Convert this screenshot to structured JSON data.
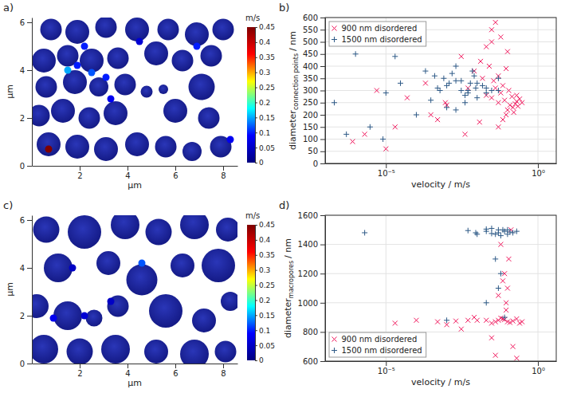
{
  "chart_data": [
    {
      "type": "circle_map",
      "panel_label": "a)",
      "xlabel": "µm",
      "ylabel": "µm",
      "xlim": [
        0,
        8.6
      ],
      "ylim": [
        0,
        6.2
      ],
      "xticks": [
        2,
        4,
        6,
        8
      ],
      "yticks": [
        0,
        2,
        4,
        6
      ],
      "circles": {
        "x": [
          0.8,
          1.9,
          3.1,
          4.4,
          5.7,
          6.9,
          8.0,
          0.5,
          1.5,
          2.5,
          3.6,
          5.2,
          6.3,
          7.5,
          0.6,
          1.8,
          2.8,
          3.9,
          4.8,
          5.5,
          7.1,
          0.3,
          1.3,
          2.4,
          3.5,
          6.0,
          7.4,
          0.7,
          1.9,
          3.1,
          4.4,
          5.6,
          6.7,
          7.9
        ],
        "y": [
          5.7,
          5.6,
          5.8,
          5.7,
          5.7,
          5.5,
          5.7,
          4.4,
          4.6,
          4.4,
          4.5,
          4.7,
          4.4,
          4.6,
          3.3,
          3.5,
          3.3,
          3.4,
          3.1,
          3.2,
          3.3,
          2.1,
          2.3,
          2.0,
          2.2,
          2.3,
          2.0,
          0.9,
          0.8,
          0.7,
          0.9,
          0.8,
          0.6,
          0.8
        ],
        "r": [
          0.45,
          0.5,
          0.45,
          0.5,
          0.45,
          0.5,
          0.45,
          0.5,
          0.45,
          0.5,
          0.45,
          0.5,
          0.45,
          0.45,
          0.45,
          0.5,
          0.4,
          0.45,
          0.25,
          0.2,
          0.55,
          0.45,
          0.5,
          0.45,
          0.5,
          0.5,
          0.45,
          0.5,
          0.5,
          0.5,
          0.5,
          0.45,
          0.4,
          0.45
        ]
      },
      "hotspots": {
        "x": [
          0.7,
          1.5,
          2.2,
          2.5,
          3.1,
          3.3,
          1.9,
          6.9,
          4.5,
          8.3
        ],
        "y": [
          0.7,
          4.0,
          5.0,
          3.9,
          3.7,
          2.8,
          4.2,
          5.0,
          5.2,
          1.1
        ],
        "velocity": [
          0.45,
          0.15,
          0.1,
          0.12,
          0.1,
          0.08,
          0.1,
          0.1,
          0.06,
          0.08
        ]
      },
      "colorbar": {
        "label": "m/s",
        "range": [
          0,
          0.45
        ],
        "ticks": [
          0,
          0.05,
          0.1,
          0.15,
          0.2,
          0.25,
          0.3,
          0.35,
          0.4,
          0.45
        ]
      }
    },
    {
      "type": "scatter",
      "panel_label": "b)",
      "xlabel": "velocity / m/s",
      "ylabel": {
        "text": "diameter",
        "subscript": "connection points",
        "unit": "/ nm"
      },
      "log": "x",
      "grid": true,
      "legend": "upper left",
      "xlim": [
        1e-07,
        4
      ],
      "ylim": [
        0,
        600
      ],
      "xticks": [
        {
          "value": 1e-05,
          "label": "10⁻⁵"
        },
        {
          "value": 1,
          "label": "10⁰"
        }
      ],
      "yticks": [
        0,
        50,
        100,
        150,
        200,
        250,
        300,
        350,
        400,
        450,
        500,
        550,
        600
      ],
      "series": [
        {
          "name": "900 nm disordered",
          "color": "#f0145a",
          "marker": "x",
          "x": [
            0.05,
            0.08,
            0.12,
            0.03,
            0.2,
            0.15,
            0.06,
            0.1,
            0.25,
            0.04,
            0.02,
            0.09,
            0.18,
            0.3,
            0.07,
            0.11,
            0.05,
            0.14,
            0.035,
            0.22,
            0.013,
            0.008,
            0.005,
            0.02,
            0.03,
            0.06,
            0.04,
            0.1,
            0.015,
            0.025,
            0.0009,
            0.0003,
            5e-05,
            2e-05,
            5e-06,
            2e-06,
            8e-07,
            1e-05,
            0.0002,
            0.003,
            0.05,
            0.012,
            0.07,
            0.16,
            0.001,
            0.0005,
            0.004,
            0.2,
            0.03,
            0.09
          ],
          "values": [
            250,
            260,
            240,
            270,
            255,
            230,
            290,
            220,
            265,
            310,
            280,
            200,
            245,
            250,
            180,
            300,
            150,
            275,
            340,
            235,
            420,
            380,
            310,
            480,
            550,
            520,
            580,
            460,
            350,
            400,
            250,
            200,
            270,
            150,
            300,
            120,
            90,
            60,
            330,
            440,
            360,
            170,
            320,
            210,
            240,
            180,
            120,
            280,
            500,
            390
          ]
        },
        {
          "name": "1500 nm disordered",
          "color": "#2e5a87",
          "marker": "+",
          "x": [
            0.001,
            0.003,
            0.01,
            0.0005,
            0.002,
            0.005,
            0.02,
            0.0008,
            0.004,
            0.008,
            0.015,
            0.03,
            0.0015,
            0.006,
            0.05,
            0.0003,
            0.0002,
            0.01,
            0.002,
            0.004,
            0.0001,
            3e-05,
            1e-05,
            3e-06,
            5e-07,
            2e-07,
            1e-06,
            0.0004,
            0.007,
            0.001,
            0.003,
            0.02,
            0.0006,
            0.009,
            0.05,
            2e-05,
            8e-06,
            0.002,
            0.0012,
            0.005
          ],
          "values": [
            320,
            300,
            330,
            310,
            340,
            290,
            310,
            350,
            280,
            360,
            320,
            300,
            370,
            330,
            300,
            260,
            380,
            270,
            400,
            250,
            200,
            330,
            290,
            150,
            120,
            250,
            450,
            360,
            380,
            230,
            340,
            290,
            300,
            310,
            350,
            440,
            100,
            220,
            330,
            300
          ]
        }
      ]
    },
    {
      "type": "circle_map",
      "panel_label": "c)",
      "xlabel": "µm",
      "ylabel": "µm",
      "xlim": [
        0,
        8.6
      ],
      "ylim": [
        0,
        6.2
      ],
      "xticks": [
        2,
        4,
        6,
        8
      ],
      "yticks": [
        0,
        2,
        4,
        6
      ],
      "circles": {
        "x": [
          0.6,
          2.2,
          3.9,
          5.3,
          6.8,
          8.2,
          1.1,
          3.2,
          4.6,
          6.3,
          7.8,
          0.2,
          1.5,
          2.6,
          3.6,
          5.6,
          7.2,
          8.3,
          0.5,
          2.0,
          3.5,
          5.2,
          6.8,
          8.1
        ],
        "y": [
          5.6,
          5.5,
          5.8,
          5.5,
          5.8,
          5.6,
          4.0,
          4.2,
          3.5,
          4.1,
          4.1,
          2.4,
          2.0,
          1.9,
          2.4,
          2.2,
          1.8,
          2.6,
          0.6,
          0.5,
          0.6,
          0.5,
          0.4,
          0.5
        ],
        "r": [
          0.55,
          0.7,
          0.6,
          0.55,
          0.6,
          0.5,
          0.6,
          0.5,
          0.65,
          0.5,
          0.7,
          0.5,
          0.6,
          0.35,
          0.45,
          0.7,
          0.5,
          0.4,
          0.6,
          0.55,
          0.6,
          0.5,
          0.6,
          0.45
        ]
      },
      "hotspots": {
        "x": [
          4.6,
          0.9,
          2.2,
          3.3,
          1.7
        ],
        "y": [
          4.2,
          1.9,
          2.0,
          2.6,
          4.0
        ],
        "velocity": [
          0.12,
          0.08,
          0.06,
          0.05,
          0.05
        ]
      },
      "colorbar": {
        "label": "m/s",
        "range": [
          0,
          0.45
        ],
        "ticks": [
          0,
          0.05,
          0.1,
          0.15,
          0.2,
          0.25,
          0.3,
          0.35,
          0.4,
          0.45
        ]
      }
    },
    {
      "type": "scatter",
      "panel_label": "d)",
      "xlabel": "velocity / m/s",
      "ylabel": {
        "text": "diameter",
        "subscript": "macropores",
        "unit": "/ nm"
      },
      "log": "x",
      "grid": true,
      "legend": "lower left",
      "xlim": [
        1e-07,
        4
      ],
      "ylim": [
        600,
        1600
      ],
      "xticks": [
        {
          "value": 1e-05,
          "label": "10⁻⁵"
        },
        {
          "value": 1,
          "label": "10⁰"
        }
      ],
      "yticks": [
        600,
        800,
        1000,
        1200,
        1400,
        1600
      ],
      "series": [
        {
          "name": "900 nm disordered",
          "color": "#f0145a",
          "marker": "x",
          "x": [
            0.05,
            0.1,
            0.2,
            0.03,
            0.15,
            0.08,
            0.02,
            0.3,
            0.06,
            0.12,
            0.01,
            0.04,
            0.25,
            0.07,
            0.005,
            0.002,
            0.0005,
            0.0001,
            2e-05,
            0.09,
            0.1,
            0.08,
            0.11,
            0.06,
            0.13,
            0.09,
            0.05,
            0.07,
            0.03,
            0.15,
            0.003,
            0.001,
            0.04,
            0.2,
            0.008
          ],
          "values": [
            880,
            870,
            890,
            860,
            875,
            885,
            880,
            870,
            895,
            865,
            880,
            870,
            860,
            890,
            880,
            875,
            870,
            880,
            860,
            1000,
            1100,
            1200,
            1300,
            1400,
            1500,
            950,
            1050,
            1150,
            760,
            700,
            820,
            850,
            640,
            620,
            900
          ]
        },
        {
          "name": "1500 nm disordered",
          "color": "#2e5a87",
          "marker": "+",
          "x": [
            0.02,
            0.05,
            0.1,
            0.01,
            0.03,
            0.08,
            0.15,
            0.005,
            0.04,
            0.07,
            0.12,
            0.02,
            0.06,
            0.009,
            0.2,
            0.03,
            0.05,
            0.1,
            2e-06,
            0.04,
            0.06,
            0.05,
            0.02,
            0.08,
            0.001
          ],
          "values": [
            1490,
            1480,
            1500,
            1470,
            1510,
            1490,
            1480,
            1495,
            1470,
            1500,
            1485,
            1505,
            1460,
            1480,
            1490,
            1475,
            1500,
            1470,
            1480,
            1300,
            1200,
            1100,
            1000,
            900,
            880
          ]
        }
      ]
    }
  ]
}
